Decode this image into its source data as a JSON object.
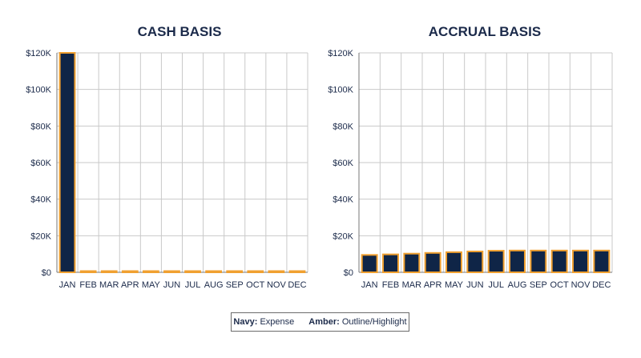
{
  "chart_data": [
    {
      "type": "bar",
      "title": "CASH BASIS",
      "categories": [
        "JAN",
        "FEB",
        "MAR",
        "APR",
        "MAY",
        "JUN",
        "JUL",
        "AUG",
        "SEP",
        "OCT",
        "NOV",
        "DEC"
      ],
      "values": [
        120000,
        500,
        500,
        500,
        500,
        500,
        500,
        500,
        500,
        500,
        500,
        500
      ],
      "ylim": [
        0,
        120000
      ],
      "yticks": [
        0,
        20000,
        40000,
        60000,
        80000,
        100000,
        120000
      ],
      "ytick_labels": [
        "$0",
        "$20K",
        "$40K",
        "$60K",
        "$80K",
        "$100K",
        "$120K"
      ],
      "grid": true
    },
    {
      "type": "bar",
      "title": "ACCRUAL BASIS",
      "categories": [
        "JAN",
        "FEB",
        "MAR",
        "APR",
        "MAY",
        "JUN",
        "JUL",
        "AUG",
        "SEP",
        "OCT",
        "NOV",
        "DEC"
      ],
      "values": [
        9500,
        9800,
        10200,
        10600,
        11000,
        11400,
        11800,
        11900,
        11900,
        11900,
        11900,
        11900
      ],
      "ylim": [
        0,
        120000
      ],
      "yticks": [
        0,
        20000,
        40000,
        60000,
        80000,
        100000,
        120000
      ],
      "ytick_labels": [
        "$0",
        "$20K",
        "$40K",
        "$60K",
        "$80K",
        "$100K",
        "$120K"
      ],
      "grid": true
    }
  ],
  "colors": {
    "bar_fill": "#0f2547",
    "bar_outline": "#f0a030",
    "text": "#1b2a4a",
    "grid": "#c9c9c9"
  },
  "legend": {
    "navy_key": "Navy:",
    "navy_text": "Expense",
    "amber_key": "Amber:",
    "amber_text": "Outline/Highlight"
  }
}
